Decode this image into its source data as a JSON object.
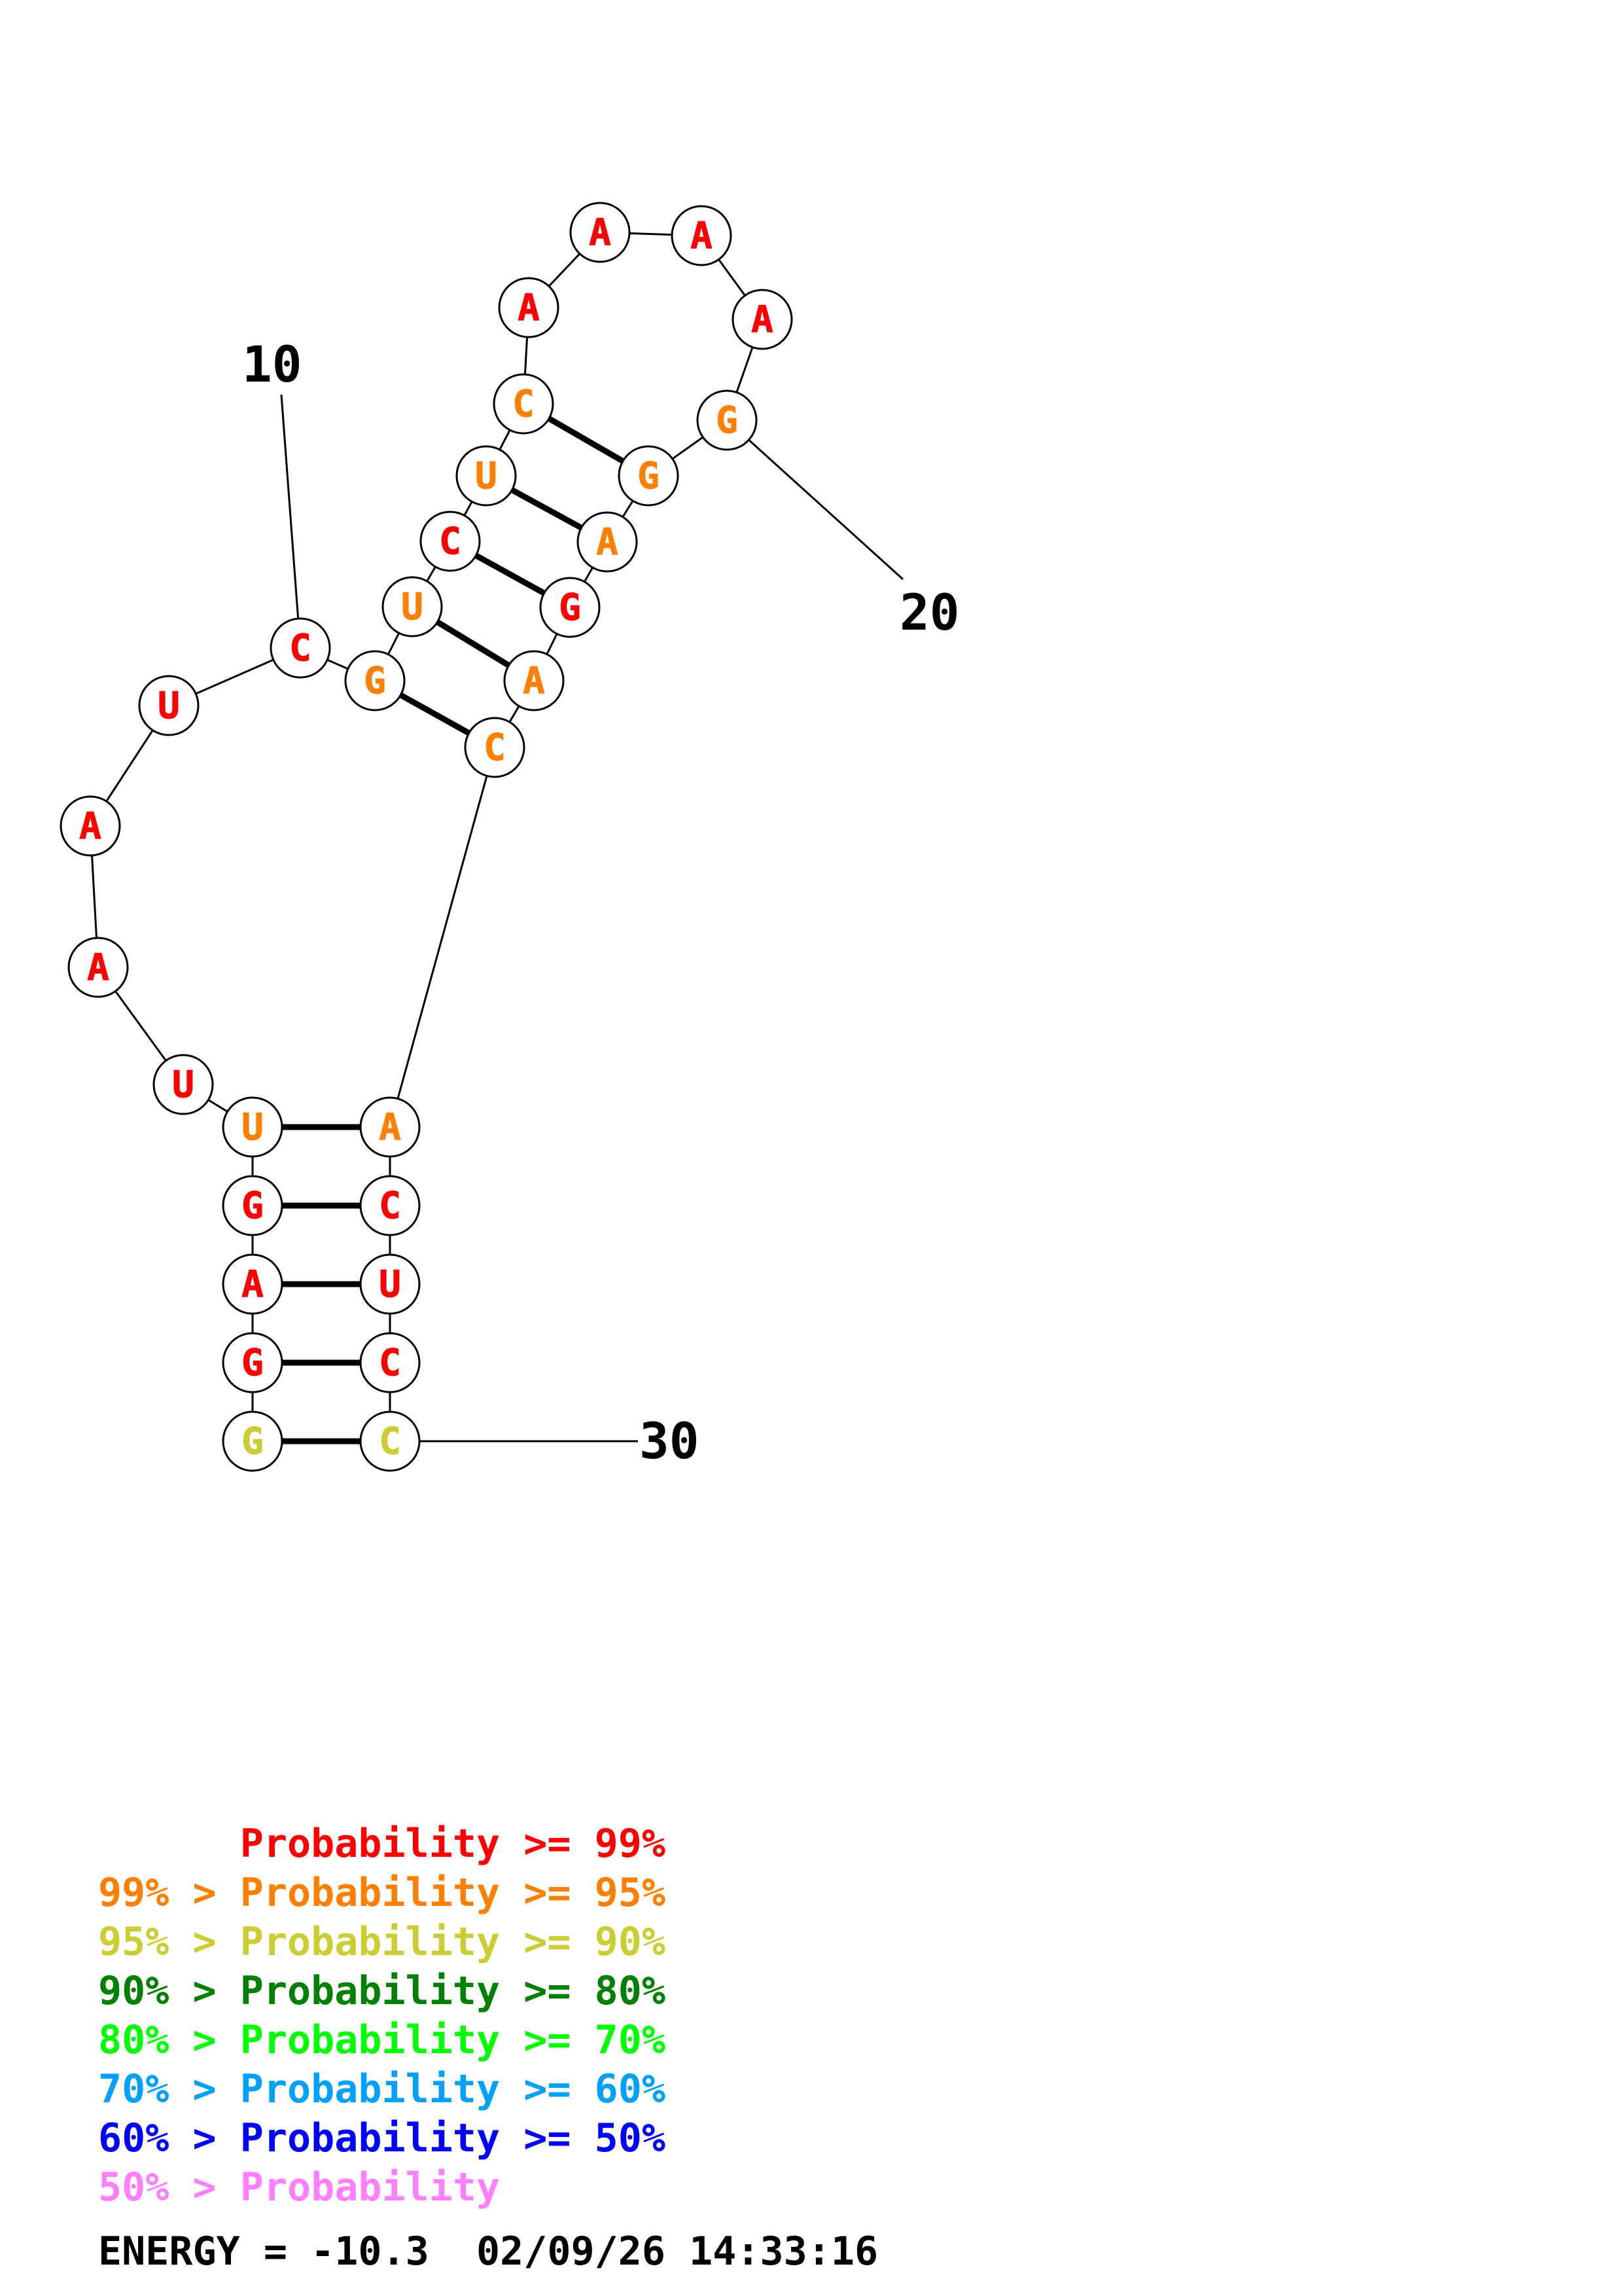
{
  "colors": {
    "red": "#ff0000",
    "orange": "#ff8000",
    "olive": "#cccc33",
    "dark_green": "#008000",
    "green": "#00ff00",
    "sky": "#00a0ff",
    "blue": "#0000ff",
    "pink": "#ff80ff",
    "outline": "#000000",
    "node_fill": "#ffffff"
  },
  "sequence": [
    {
      "base": "G",
      "color": "olive"
    },
    {
      "base": "G",
      "color": "red"
    },
    {
      "base": "A",
      "color": "red"
    },
    {
      "base": "G",
      "color": "red"
    },
    {
      "base": "U",
      "color": "orange"
    },
    {
      "base": "U",
      "color": "red"
    },
    {
      "base": "A",
      "color": "red"
    },
    {
      "base": "A",
      "color": "red"
    },
    {
      "base": "U",
      "color": "red"
    },
    {
      "base": "C",
      "color": "red"
    },
    {
      "base": "G",
      "color": "orange"
    },
    {
      "base": "U",
      "color": "orange"
    },
    {
      "base": "C",
      "color": "red"
    },
    {
      "base": "U",
      "color": "orange"
    },
    {
      "base": "C",
      "color": "orange"
    },
    {
      "base": "A",
      "color": "red"
    },
    {
      "base": "A",
      "color": "red"
    },
    {
      "base": "A",
      "color": "red"
    },
    {
      "base": "A",
      "color": "red"
    },
    {
      "base": "G",
      "color": "orange"
    },
    {
      "base": "G",
      "color": "orange"
    },
    {
      "base": "A",
      "color": "orange"
    },
    {
      "base": "G",
      "color": "red"
    },
    {
      "base": "A",
      "color": "orange"
    },
    {
      "base": "C",
      "color": "orange"
    },
    {
      "base": "A",
      "color": "orange"
    },
    {
      "base": "C",
      "color": "red"
    },
    {
      "base": "U",
      "color": "red"
    },
    {
      "base": "C",
      "color": "red"
    },
    {
      "base": "C",
      "color": "olive"
    }
  ],
  "pairs": [
    [
      1,
      30
    ],
    [
      2,
      29
    ],
    [
      3,
      28
    ],
    [
      4,
      27
    ],
    [
      5,
      26
    ],
    [
      11,
      25
    ],
    [
      12,
      24
    ],
    [
      13,
      23
    ],
    [
      14,
      22
    ],
    [
      15,
      21
    ]
  ],
  "position_labels": [
    {
      "index": 10,
      "text": "10"
    },
    {
      "index": 20,
      "text": "20"
    },
    {
      "index": 30,
      "text": "30"
    }
  ],
  "legend": [
    {
      "prefix": "    ",
      "text": "Probability >= 99%",
      "color": "red"
    },
    {
      "prefix": "99% > ",
      "text": "Probability >= 95%",
      "color": "orange"
    },
    {
      "prefix": "95% > ",
      "text": "Probability >= 90%",
      "color": "olive"
    },
    {
      "prefix": "90% > ",
      "text": "Probability >= 80%",
      "color": "dark_green"
    },
    {
      "prefix": "80% > ",
      "text": "Probability >= 70%",
      "color": "green"
    },
    {
      "prefix": "70% > ",
      "text": "Probability >= 60%",
      "color": "sky"
    },
    {
      "prefix": "60% > ",
      "text": "Probability >= 50%",
      "color": "blue"
    },
    {
      "prefix": "50% > ",
      "text": "Probability",
      "color": "pink"
    }
  ],
  "footer": {
    "energy": "ENERGY = -10.3",
    "timestamp": "02/09/26 14:33:16"
  }
}
